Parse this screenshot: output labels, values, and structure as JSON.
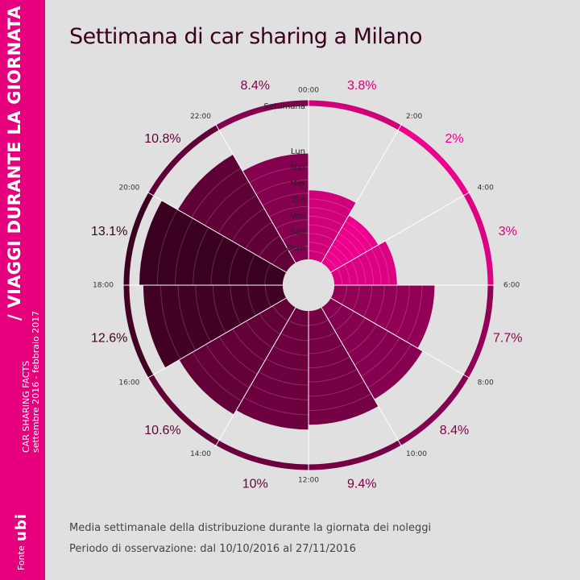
{
  "sidebar": {
    "title": "/ VIAGGI DURANTE LA GIORNATA",
    "subtitle_1": "CAR SHARING FACTS",
    "subtitle_2": "settembre 2016 - febbraio 2017",
    "source_label": "Fonte",
    "source_logo": "ubi"
  },
  "title": "Settimana di car sharing a Milano",
  "notes": {
    "line1": "Media settimanale della distribuzione durante la giornata dei noleggi",
    "line2": "Periodo di osservazione: dal 10/10/2016 al 27/11/2016"
  },
  "chart_data": {
    "type": "radial-bar",
    "title": "Settimana di car sharing a Milano",
    "slots": [
      "00:00",
      "2:00",
      "4:00",
      "6:00",
      "8:00",
      "10:00",
      "12:00",
      "14:00",
      "16:00",
      "18:00",
      "20:00",
      "22:00"
    ],
    "weekly_percent_labels": [
      "3.8%",
      "2%",
      "3%",
      "7.7%",
      "8.4%",
      "9.4%",
      "10%",
      "10.6%",
      "12.6%",
      "13.1%",
      "10.8%",
      "8.4%"
    ],
    "weekly_percent": [
      3.8,
      2,
      3,
      7.7,
      8.4,
      9.4,
      10,
      10.6,
      12.6,
      13.1,
      10.8,
      8.4
    ],
    "ring_labels": [
      "Settimana",
      "Lun",
      "Mar",
      "Mer",
      "Gio",
      "Ven",
      "Sab",
      "Dom"
    ],
    "day_series": [
      "Lun",
      "Mar",
      "Mer",
      "Gio",
      "Ven",
      "Sab",
      "Dom"
    ],
    "colors": {
      "low": "#ec008c",
      "high": "#3a0020",
      "outer_bar": "#e6007e"
    }
  }
}
